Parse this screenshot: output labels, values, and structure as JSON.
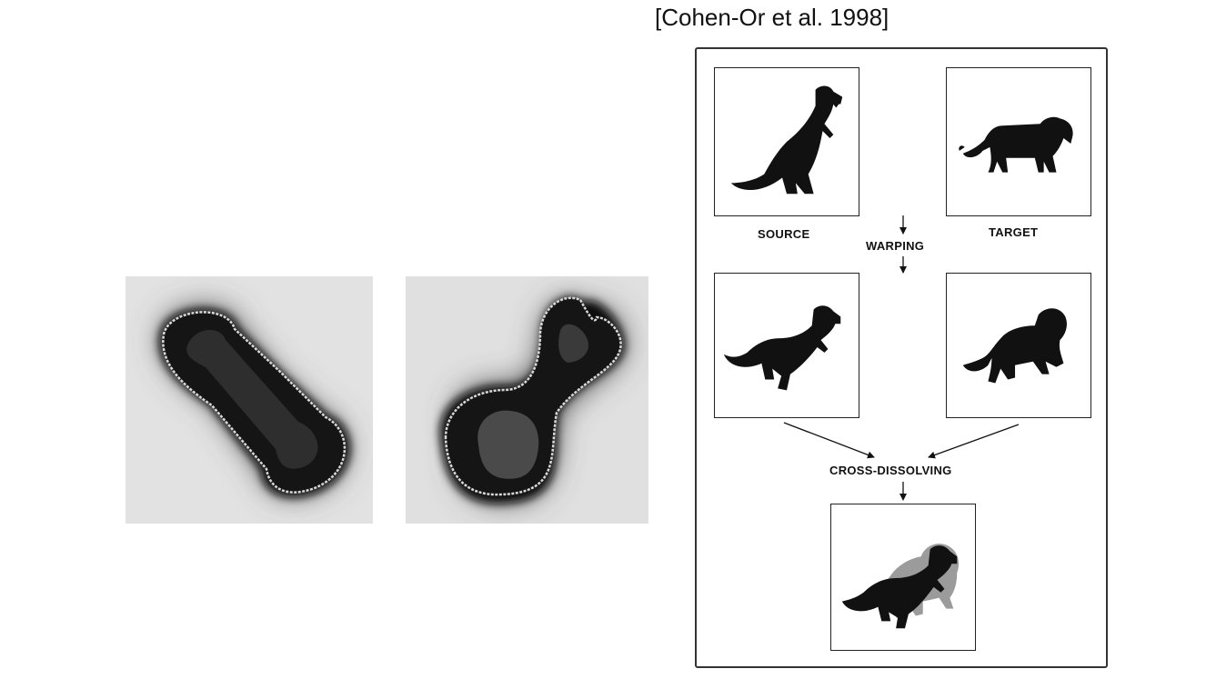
{
  "citation": "[Cohen-Or et al. 1998]",
  "diagram": {
    "source_label": "SOURCE",
    "target_label": "TARGET",
    "warping_label": "WARPING",
    "cross_dissolving_label": "CROSS-DISSOLVING"
  },
  "icons": [
    "dumbbell-distance-field-image",
    "figure-eight-distance-field-image",
    "dinosaur-silhouette-icon",
    "lion-silhouette-icon",
    "arrow-icon"
  ]
}
